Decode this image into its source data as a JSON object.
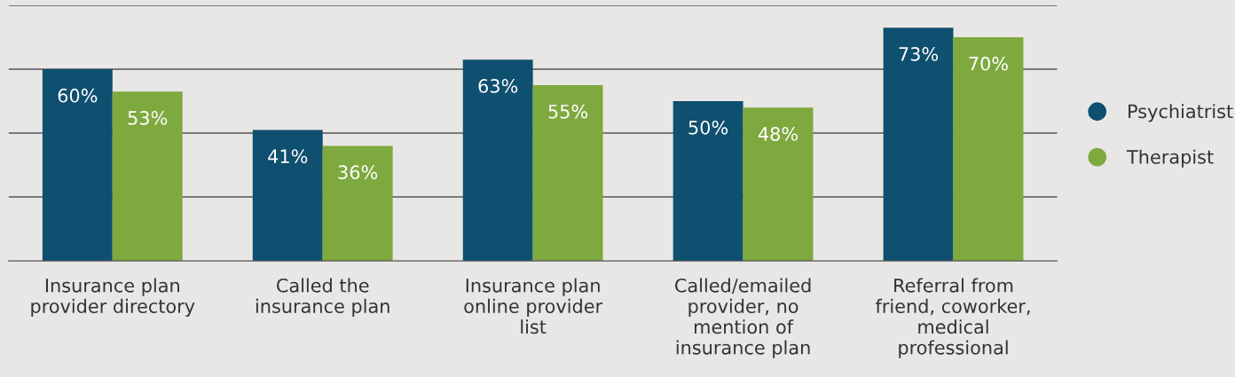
{
  "chart_data": {
    "type": "bar",
    "categories": [
      "Insurance plan\nprovider directory",
      "Called the\ninsurance plan",
      "Insurance plan\nonline provider\nlist",
      "Called/emailed\nprovider, no\nmention of\ninsurance plan",
      "Referral from\nfriend, coworker,\nmedical\nprofessional"
    ],
    "series": [
      {
        "name": "Psychiatrist",
        "color": "#0f4f6f",
        "values": [
          60,
          41,
          63,
          50,
          73
        ],
        "value_labels": [
          "60%",
          "41%",
          "63%",
          "50%",
          "73%"
        ]
      },
      {
        "name": "Therapist",
        "color": "#7ea93f",
        "values": [
          53,
          36,
          55,
          48,
          70
        ],
        "value_labels": [
          "53%",
          "36%",
          "55%",
          "48%",
          "70%"
        ]
      }
    ],
    "ylim": [
      0,
      80
    ],
    "yticks": [
      {
        "value": 20,
        "label": null
      },
      {
        "value": 40,
        "label": null
      },
      {
        "value": 60,
        "label": null
      },
      {
        "value": 80,
        "label": null
      }
    ],
    "tick_labels": "x",
    "grid": "y",
    "legend": "right",
    "marker": "circle"
  }
}
